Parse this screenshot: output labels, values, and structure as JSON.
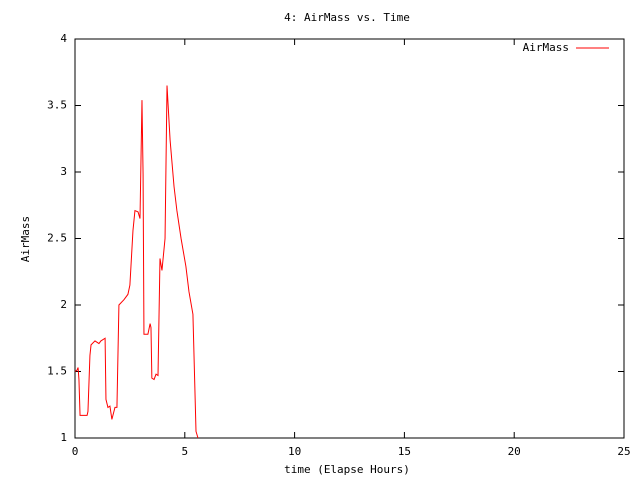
{
  "chart_data": {
    "type": "line",
    "title": "4: AirMass vs. Time",
    "x_label": "time (Elapse Hours)",
    "y_label": "AirMass",
    "x": [
      0,
      0.09,
      0.14,
      0.18,
      0.23,
      0.41,
      0.55,
      0.59,
      0.68,
      0.73,
      0.91,
      1.09,
      1.18,
      1.37,
      1.41,
      1.5,
      1.59,
      1.68,
      1.82,
      1.91,
      2.0,
      2.23,
      2.41,
      2.5,
      2.64,
      2.73,
      2.87,
      2.96,
      3.05,
      3.1,
      3.14,
      3.32,
      3.42,
      3.46,
      3.5,
      3.6,
      3.69,
      3.78,
      3.87,
      3.96,
      4.1,
      4.19,
      4.33,
      4.51,
      4.64,
      4.83,
      5.05,
      5.19,
      5.37,
      5.51,
      5.6
    ],
    "series": [
      {
        "name": "AirMass",
        "color": "#ff0000",
        "values": [
          1.5,
          1.51,
          1.53,
          1.44,
          1.17,
          1.17,
          1.17,
          1.2,
          1.62,
          1.7,
          1.73,
          1.71,
          1.73,
          1.75,
          1.29,
          1.23,
          1.24,
          1.14,
          1.23,
          1.23,
          2.0,
          2.04,
          2.08,
          2.15,
          2.56,
          2.71,
          2.7,
          2.65,
          3.54,
          2.98,
          1.78,
          1.78,
          1.86,
          1.83,
          1.45,
          1.44,
          1.48,
          1.47,
          2.35,
          2.26,
          2.5,
          3.65,
          3.24,
          2.89,
          2.71,
          2.5,
          2.29,
          2.1,
          1.93,
          1.05,
          1.0
        ]
      }
    ],
    "xlim": [
      0,
      25
    ],
    "xticks": [
      0,
      5,
      10,
      15,
      20,
      25
    ],
    "ylim": [
      1,
      4
    ],
    "yticks": [
      1,
      1.5,
      2,
      2.5,
      3,
      3.5,
      4
    ],
    "grid": false,
    "legend": "top-right"
  }
}
